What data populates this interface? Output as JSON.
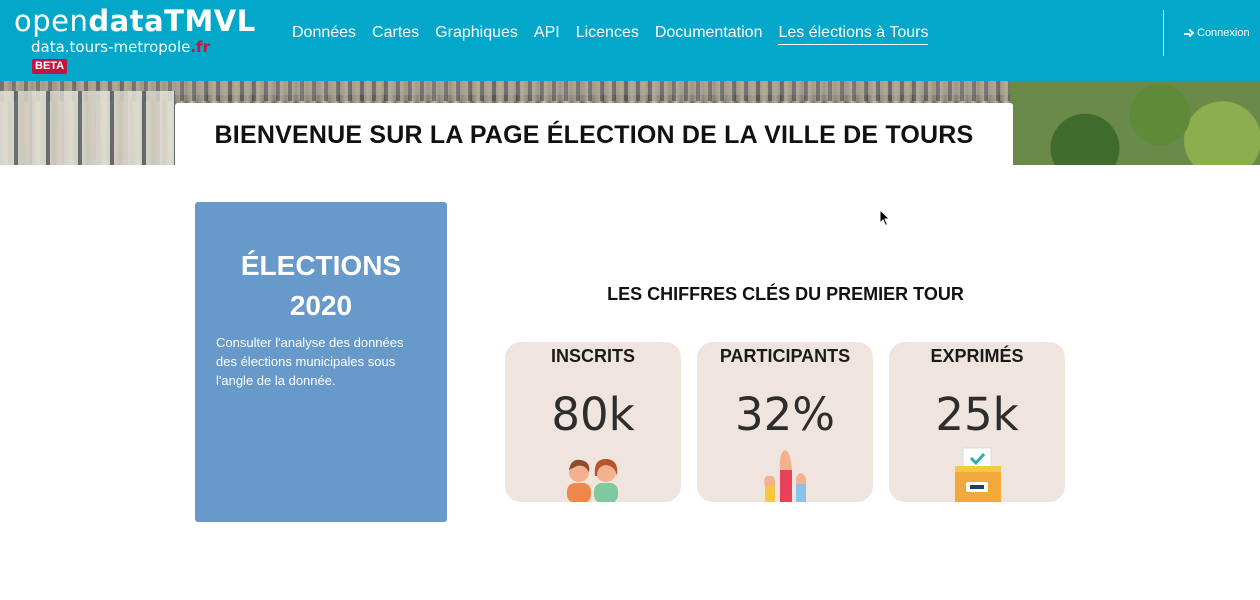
{
  "header": {
    "logo_light": "open",
    "logo_bold": "dataTMVL",
    "logo_domain": "data.tours-metropole",
    "logo_tld": ".fr",
    "logo_badge": "BETA",
    "nav": [
      {
        "label": "Données"
      },
      {
        "label": "Cartes"
      },
      {
        "label": "Graphiques"
      },
      {
        "label": "API"
      },
      {
        "label": "Licences"
      },
      {
        "label": "Documentation"
      },
      {
        "label": "Les élections à Tours",
        "active": true
      }
    ],
    "login_label": "Connexion",
    "accent_color": "#03a7ca"
  },
  "banner": {
    "title": "BIENVENUE SUR LA PAGE ÉLECTION DE LA VILLE DE TOURS"
  },
  "elections_card": {
    "title_line1": "ÉLECTIONS",
    "title_line2": "2020",
    "description": "Consulter l'analyse des données des élections municipales sous l'angle de la donnée.",
    "color": "#6799cb"
  },
  "key_figures": {
    "heading": "LES CHIFFRES CLÉS DU PREMIER TOUR",
    "cards": [
      {
        "label": "INSCRITS",
        "value": "80k",
        "icon": "people-icon"
      },
      {
        "label": "PARTICIPANTS",
        "value": "32%",
        "icon": "raised-hands-icon"
      },
      {
        "label": "EXPRIMÉS",
        "value": "25k",
        "icon": "ballot-box-icon"
      }
    ]
  }
}
